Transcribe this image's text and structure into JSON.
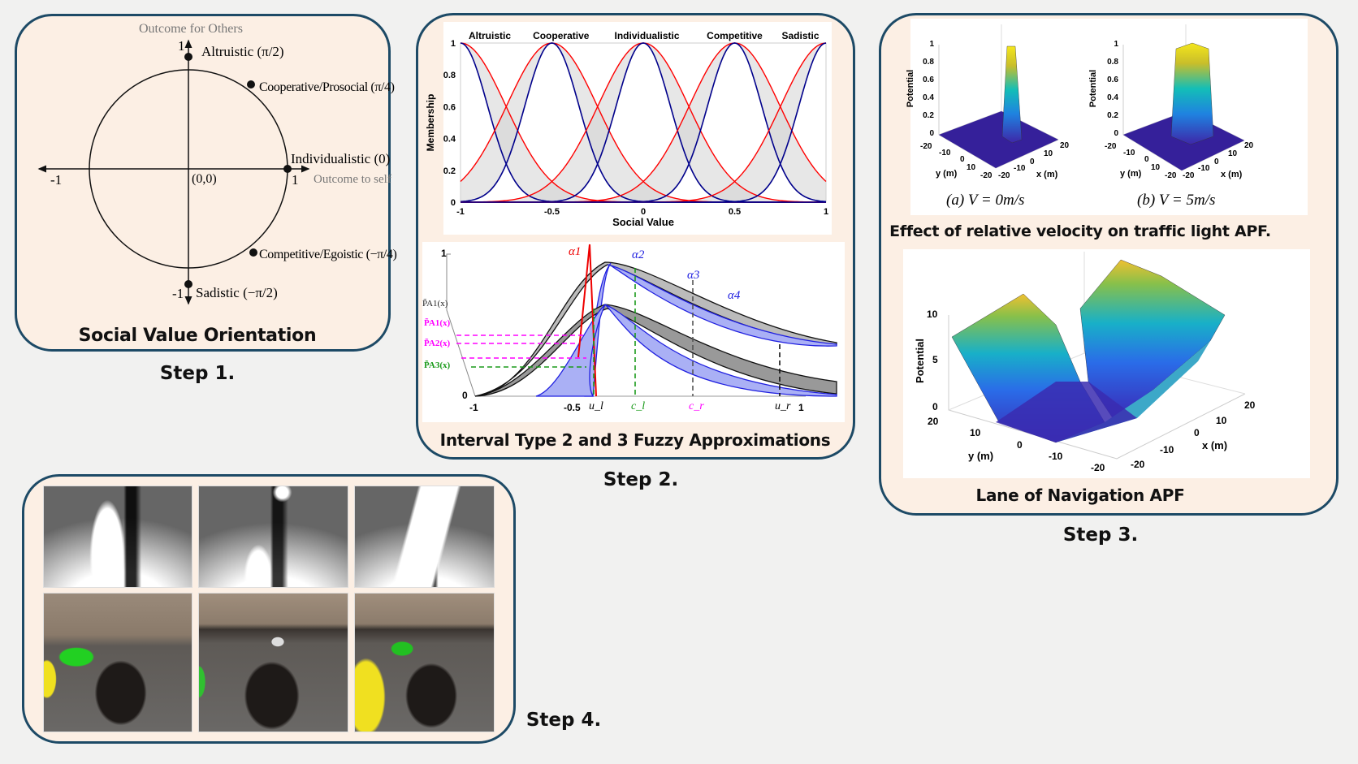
{
  "step1": {
    "label": "Step 1.",
    "title": "Social Value Orientation",
    "y_axis_label": "Outcome for Others",
    "x_axis_label": "Outcome to self",
    "ticks": {
      "y_top": "1",
      "y_bottom": "-1",
      "x_left": "-1",
      "x_right": "1",
      "origin": "(0,0)"
    },
    "points": [
      {
        "label": "Altruistic (π/2)",
        "angle": "π/2"
      },
      {
        "label": "Cooperative/Prosocial (π/4)",
        "angle": "π/4"
      },
      {
        "label": "Individualistic (0)",
        "angle": "0"
      },
      {
        "label": "Competitive/Egoistic (−π/4)",
        "angle": "−π/4"
      },
      {
        "label": "Sadistic (−π/2)",
        "angle": "−π/2"
      }
    ]
  },
  "step2": {
    "label": "Step 2.",
    "title": "Interval Type 2 and 3 Fuzzy Approximations",
    "membership_chart": {
      "ylabel": "Membership",
      "xlabel": "Social Value",
      "classes": [
        "Altruistic",
        "Cooperative",
        "Individualistic",
        "Competitive",
        "Sadistic"
      ],
      "centers": [
        -1,
        -0.5,
        0,
        0.5,
        1
      ],
      "xticks": [
        "-1",
        "-0.5",
        "0",
        "0.5",
        "1"
      ],
      "yticks": [
        "0",
        "0.2",
        "0.4",
        "0.6",
        "0.8",
        "1"
      ],
      "colors": {
        "upper": "#ff0000",
        "lower": "#00008b",
        "fou": "#d3d3d3"
      }
    },
    "approx_chart": {
      "yticks": [
        "0",
        "1"
      ],
      "xticks": [
        "-1",
        "-0.5",
        "u_l",
        "c_l",
        "c_r",
        "u_r",
        "1"
      ],
      "alpha_labels": [
        "α1",
        "α2",
        "α3",
        "α4"
      ],
      "p_labels": [
        "P̃A1(x)",
        "P̃A1(x)",
        "P̃A2(x)",
        "P̃A3(x)"
      ]
    }
  },
  "step3": {
    "label": "Step 3.",
    "caption_top": "Effect of relative velocity on traffic light APF.",
    "caption_bottom": "Lane of Navigation APF",
    "plots": [
      {
        "caption": "(a) V = 0m/s",
        "zlabel": "Potential",
        "zticks": [
          "0",
          "0.2",
          "0.4",
          "0.6",
          "0.8",
          "1"
        ],
        "yticks": [
          "-20",
          "-10",
          "0",
          "10",
          "-20"
        ],
        "xticks": [
          "-20",
          "-10",
          "0",
          "10",
          "20"
        ],
        "ylabel": "y (m)",
        "xlabel": "x (m)"
      },
      {
        "caption": "(b) V = 5m/s",
        "zlabel": "Potential",
        "zticks": [
          "0",
          "0.2",
          "0.4",
          "0.6",
          "0.8",
          "1"
        ],
        "yticks": [
          "-20",
          "-10",
          "0",
          "10",
          "-20"
        ],
        "xticks": [
          "-20",
          "-10",
          "0",
          "10",
          "20"
        ],
        "ylabel": "y (m)",
        "xlabel": "x (m)"
      }
    ],
    "lane_plot": {
      "zlabel": "Potential",
      "zticks": [
        "0",
        "5",
        "10"
      ],
      "yticks": [
        "20",
        "10",
        "0",
        "-10",
        "-20"
      ],
      "xticks": [
        "-20",
        "-10",
        "0",
        "10",
        "20"
      ],
      "ylabel": "y (m)",
      "xlabel": "x (m)"
    }
  },
  "step4": {
    "label": "Step 4."
  }
}
